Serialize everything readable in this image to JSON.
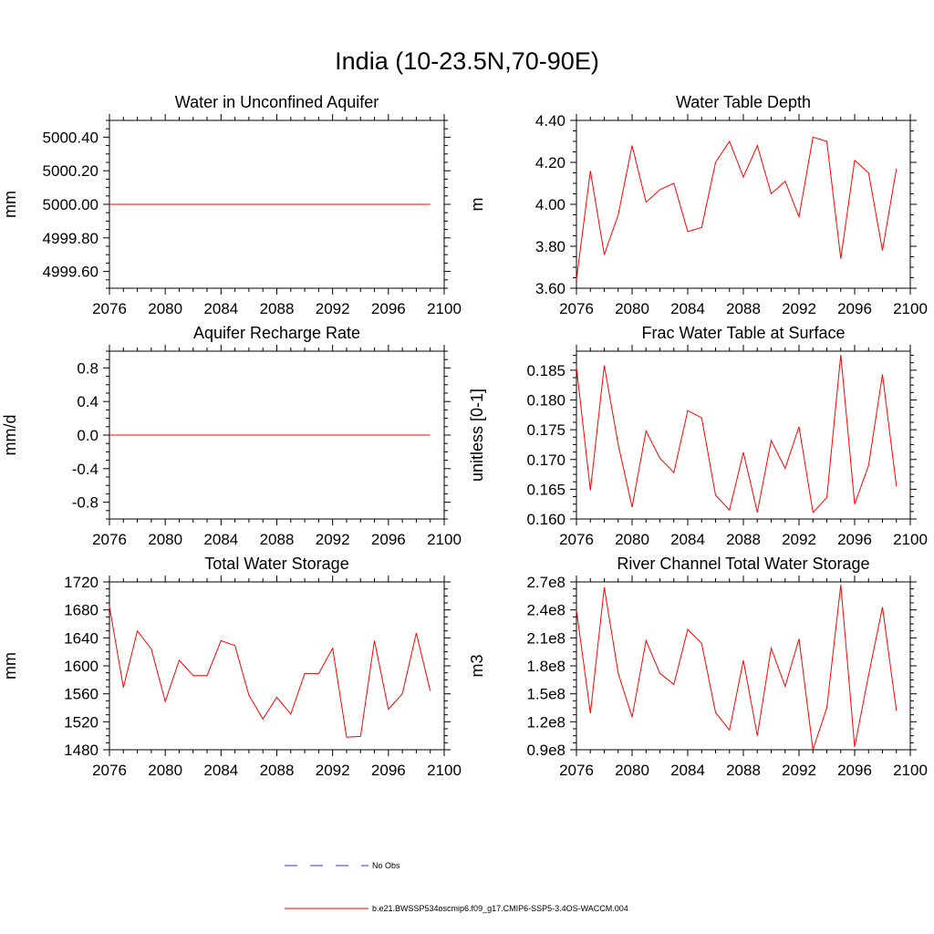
{
  "title": "India (10-23.5N,70-90E)",
  "colors": {
    "model": "#ff0000",
    "obs": "#3333cc",
    "axis": "#000000"
  },
  "legend": {
    "obs_label": "No Obs",
    "model_label": "b.e21.BWSSP534oscmip6.f09_g17.CMIP6-SSP5-3.4OS-WACCM.004"
  },
  "chart_data": [
    {
      "type": "line",
      "title": "Water in Unconfined Aquifer",
      "ylabel": "mm",
      "xlim": [
        2076,
        2100
      ],
      "ylim": [
        4999.5,
        5000.5
      ],
      "xticks": [
        2076,
        2080,
        2084,
        2088,
        2092,
        2096,
        2100
      ],
      "yticks": [
        4999.6,
        4999.8,
        5000.0,
        5000.2,
        5000.4
      ],
      "yticklabels": [
        "4999.60",
        "4999.80",
        "5000.00",
        "5000.20",
        "5000.40"
      ],
      "x": [
        2076,
        2077,
        2078,
        2079,
        2080,
        2081,
        2082,
        2083,
        2084,
        2085,
        2086,
        2087,
        2088,
        2089,
        2090,
        2091,
        2092,
        2093,
        2094,
        2095,
        2096,
        2097,
        2098,
        2099
      ],
      "values": [
        5000,
        5000,
        5000,
        5000,
        5000,
        5000,
        5000,
        5000,
        5000,
        5000,
        5000,
        5000,
        5000,
        5000,
        5000,
        5000,
        5000,
        5000,
        5000,
        5000,
        5000,
        5000,
        5000,
        5000
      ]
    },
    {
      "type": "line",
      "title": "Water Table Depth",
      "ylabel": "m",
      "xlim": [
        2076,
        2100
      ],
      "ylim": [
        3.6,
        4.4
      ],
      "xticks": [
        2076,
        2080,
        2084,
        2088,
        2092,
        2096,
        2100
      ],
      "yticks": [
        3.6,
        3.8,
        4.0,
        4.2,
        4.4
      ],
      "yticklabels": [
        "3.60",
        "3.80",
        "4.00",
        "4.20",
        "4.40"
      ],
      "x": [
        2076,
        2077,
        2078,
        2079,
        2080,
        2081,
        2082,
        2083,
        2084,
        2085,
        2086,
        2087,
        2088,
        2089,
        2090,
        2091,
        2092,
        2093,
        2094,
        2095,
        2096,
        2097,
        2098,
        2099
      ],
      "values": [
        3.64,
        4.16,
        3.76,
        3.95,
        4.28,
        4.01,
        4.07,
        4.1,
        3.87,
        3.89,
        4.2,
        4.3,
        4.13,
        4.28,
        4.05,
        4.11,
        3.94,
        4.32,
        4.3,
        3.74,
        4.21,
        4.15,
        3.78,
        4.17
      ]
    },
    {
      "type": "line",
      "title": "Aquifer Recharge Rate",
      "ylabel": "mm/d",
      "xlim": [
        2076,
        2100
      ],
      "ylim": [
        -1.0,
        1.0
      ],
      "xticks": [
        2076,
        2080,
        2084,
        2088,
        2092,
        2096,
        2100
      ],
      "yticks": [
        -0.8,
        -0.4,
        0.0,
        0.4,
        0.8
      ],
      "yticklabels": [
        "-0.8",
        "-0.4",
        "0.0",
        "0.4",
        "0.8"
      ],
      "x": [
        2076,
        2077,
        2078,
        2079,
        2080,
        2081,
        2082,
        2083,
        2084,
        2085,
        2086,
        2087,
        2088,
        2089,
        2090,
        2091,
        2092,
        2093,
        2094,
        2095,
        2096,
        2097,
        2098,
        2099
      ],
      "values": [
        0,
        0,
        0,
        0,
        0,
        0,
        0,
        0,
        0,
        0,
        0,
        0,
        0,
        0,
        0,
        0,
        0,
        0,
        0,
        0,
        0,
        0,
        0,
        0
      ]
    },
    {
      "type": "line",
      "title": "Frac Water Table at Surface",
      "ylabel": "unitless [0-1]",
      "xlim": [
        2076,
        2100
      ],
      "ylim": [
        0.16,
        0.1882
      ],
      "xticks": [
        2076,
        2080,
        2084,
        2088,
        2092,
        2096,
        2100
      ],
      "yticks": [
        0.16,
        0.165,
        0.17,
        0.175,
        0.18,
        0.185
      ],
      "yticklabels": [
        "0.160",
        "0.165",
        "0.170",
        "0.175",
        "0.180",
        "0.185"
      ],
      "x": [
        2076,
        2077,
        2078,
        2079,
        2080,
        2081,
        2082,
        2083,
        2084,
        2085,
        2086,
        2087,
        2088,
        2089,
        2090,
        2091,
        2092,
        2093,
        2094,
        2095,
        2096,
        2097,
        2098,
        2099
      ],
      "values": [
        0.1855,
        0.1648,
        0.1858,
        0.1725,
        0.162,
        0.1748,
        0.1702,
        0.1678,
        0.1782,
        0.177,
        0.164,
        0.1615,
        0.1712,
        0.1611,
        0.1732,
        0.1685,
        0.1755,
        0.1611,
        0.1636,
        0.1876,
        0.1625,
        0.169,
        0.1843,
        0.1655
      ]
    },
    {
      "type": "line",
      "title": "Total Water Storage",
      "ylabel": "mm",
      "xlim": [
        2076,
        2100
      ],
      "ylim": [
        1480,
        1720
      ],
      "xticks": [
        2076,
        2080,
        2084,
        2088,
        2092,
        2096,
        2100
      ],
      "yticks": [
        1480,
        1520,
        1560,
        1600,
        1640,
        1680,
        1720
      ],
      "yticklabels": [
        "1480",
        "1520",
        "1560",
        "1600",
        "1640",
        "1680",
        "1720"
      ],
      "x": [
        2076,
        2077,
        2078,
        2079,
        2080,
        2081,
        2082,
        2083,
        2084,
        2085,
        2086,
        2087,
        2088,
        2089,
        2090,
        2091,
        2092,
        2093,
        2094,
        2095,
        2096,
        2097,
        2098,
        2099
      ],
      "values": [
        1685,
        1569,
        1650,
        1624,
        1549,
        1608,
        1586,
        1586,
        1636,
        1629,
        1558,
        1524,
        1555,
        1531,
        1589,
        1589,
        1625,
        1498,
        1499,
        1636,
        1538,
        1560,
        1647,
        1564
      ]
    },
    {
      "type": "line",
      "title": "River Channel Total Water Storage",
      "ylabel": "m3",
      "xlim": [
        2076,
        2100
      ],
      "ylim": [
        90000000,
        270000000
      ],
      "xticks": [
        2076,
        2080,
        2084,
        2088,
        2092,
        2096,
        2100
      ],
      "yticks": [
        90000000,
        120000000,
        150000000,
        180000000,
        210000000,
        240000000,
        270000000
      ],
      "yticklabels": [
        "0.9e8",
        "1.2e8",
        "1.5e8",
        "1.8e8",
        "2.1e8",
        "2.4e8",
        "2.7e8"
      ],
      "x": [
        2076,
        2077,
        2078,
        2079,
        2080,
        2081,
        2082,
        2083,
        2084,
        2085,
        2086,
        2087,
        2088,
        2089,
        2090,
        2091,
        2092,
        2093,
        2094,
        2095,
        2096,
        2097,
        2098,
        2099
      ],
      "values": [
        240000000,
        129000000,
        264000000,
        172000000,
        125000000,
        207000000,
        172000000,
        160000000,
        219000000,
        204000000,
        130000000,
        111000000,
        186000000,
        105000000,
        199000000,
        158000000,
        209000000,
        90000000,
        135000000,
        267000000,
        93000000,
        170000000,
        243000000,
        132000000
      ]
    }
  ]
}
